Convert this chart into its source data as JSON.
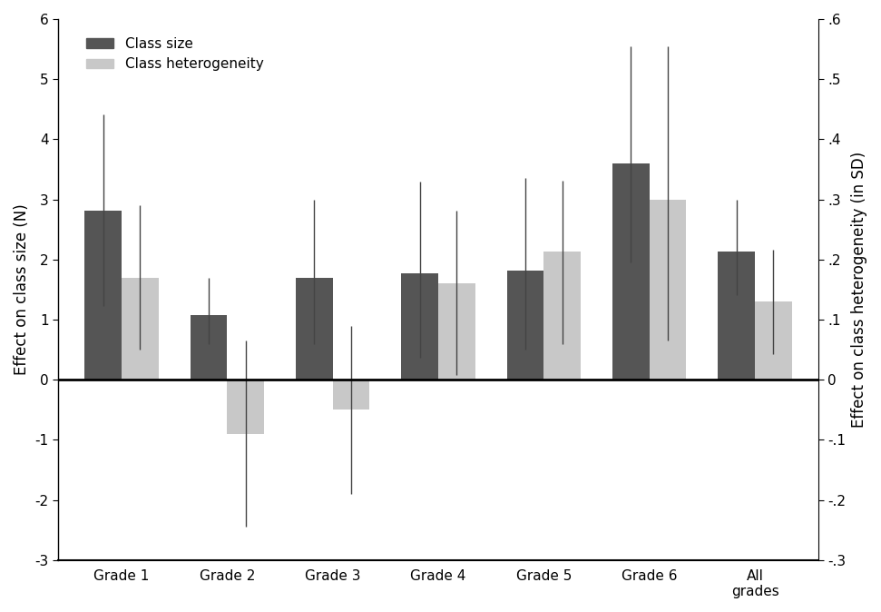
{
  "categories": [
    "Grade 1",
    "Grade 2",
    "Grade 3",
    "Grade 4",
    "Grade 5",
    "Grade 6",
    "All\ngrades"
  ],
  "class_size": [
    2.82,
    1.07,
    1.7,
    1.77,
    1.82,
    3.6,
    2.13
  ],
  "class_hetero_scaled": [
    1.7,
    -0.9,
    -0.5,
    1.6,
    2.13,
    3.0,
    1.3
  ],
  "class_size_err_low": [
    1.6,
    0.47,
    1.1,
    1.4,
    1.32,
    1.65,
    0.72
  ],
  "class_size_err_high": [
    1.6,
    0.63,
    1.3,
    1.53,
    1.53,
    1.95,
    0.87
  ],
  "class_hetero_err_low": [
    1.2,
    1.55,
    1.4,
    1.52,
    1.53,
    2.35,
    0.87
  ],
  "class_hetero_err_high": [
    1.2,
    1.55,
    1.4,
    1.22,
    1.18,
    2.55,
    0.87
  ],
  "bar_color_dark": "#555555",
  "bar_color_light": "#c8c8c8",
  "bar_width": 0.35,
  "ylim_left": [
    -3,
    6
  ],
  "yticks_left": [
    -3,
    -2,
    -1,
    0,
    1,
    2,
    3,
    4,
    5,
    6
  ],
  "yticks_right_labels": [
    "-.3",
    "-.2",
    "-.1",
    "0",
    ".1",
    ".2",
    ".3",
    ".4",
    ".5",
    ".6"
  ],
  "ylabel_left": "Effect on class size (N)",
  "ylabel_right": "Effect on class heterogeneity (in SD)",
  "legend_label_dark": "Class size",
  "legend_label_light": "Class heterogeneity",
  "background_color": "#ffffff"
}
